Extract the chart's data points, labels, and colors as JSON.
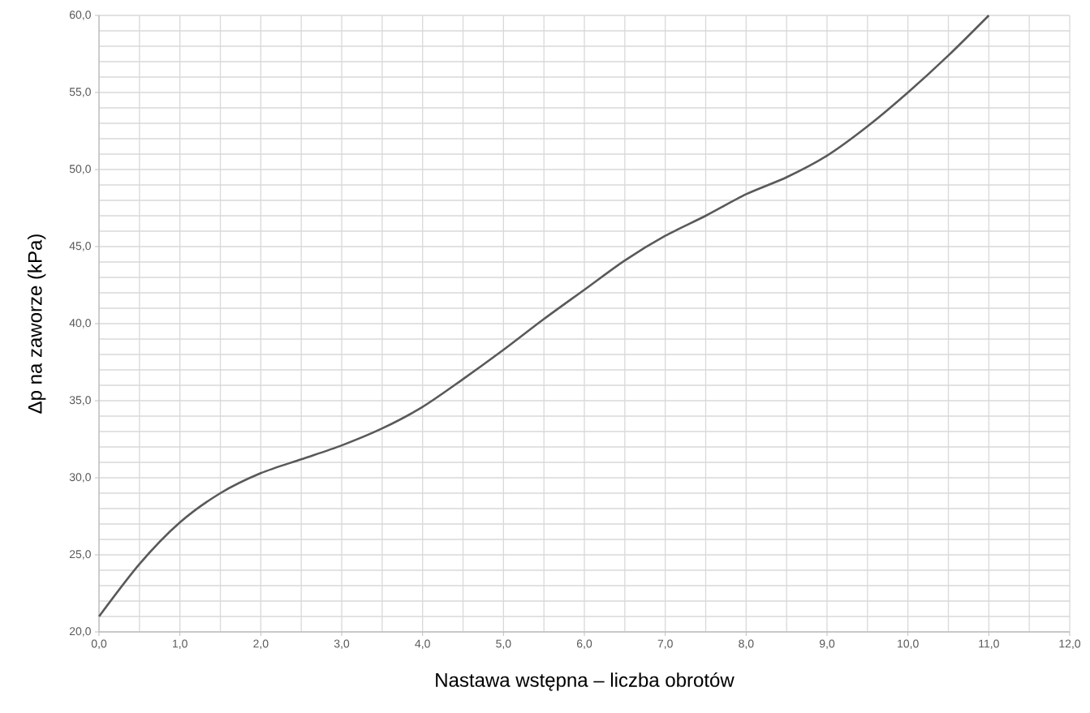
{
  "chart_data": {
    "type": "line",
    "xlabel": "Nastawa wstępna – liczba obrotów",
    "ylabel": "Δp na zaworze (kPa)",
    "x": [
      0,
      0.5,
      1.0,
      1.5,
      2.0,
      2.5,
      3.0,
      3.5,
      4.0,
      4.5,
      5.0,
      5.5,
      6.0,
      6.5,
      7.0,
      7.5,
      8.0,
      8.5,
      9.0,
      9.5,
      10.0,
      10.5,
      11.0
    ],
    "series": [
      {
        "color": "#595959",
        "values": [
          21.0,
          24.4,
          27.1,
          29.0,
          30.3,
          31.2,
          32.1,
          33.2,
          34.6,
          36.4,
          38.3,
          40.3,
          42.2,
          44.1,
          45.7,
          47.0,
          48.4,
          49.5,
          50.9,
          52.8,
          55.0,
          57.4,
          60.0
        ]
      }
    ],
    "xlim": [
      0,
      12
    ],
    "ylim": [
      20,
      60
    ],
    "xticks": [
      {
        "value": 0,
        "label": "0,0"
      },
      {
        "value": 1,
        "label": "1,0"
      },
      {
        "value": 2,
        "label": "2,0"
      },
      {
        "value": 3,
        "label": "3,0"
      },
      {
        "value": 4,
        "label": "4,0"
      },
      {
        "value": 5,
        "label": "5,0"
      },
      {
        "value": 6,
        "label": "6,0"
      },
      {
        "value": 7,
        "label": "7,0"
      },
      {
        "value": 8,
        "label": "8,0"
      },
      {
        "value": 9,
        "label": "9,0"
      },
      {
        "value": 10,
        "label": "10,0"
      },
      {
        "value": 11,
        "label": "11,0"
      },
      {
        "value": 12,
        "label": "12,0"
      }
    ],
    "yticks": [
      {
        "value": 20,
        "label": "20,0"
      },
      {
        "value": 25,
        "label": "25,0"
      },
      {
        "value": 30,
        "label": "30,0"
      },
      {
        "value": 35,
        "label": "35,0"
      },
      {
        "value": 40,
        "label": "40,0"
      },
      {
        "value": 45,
        "label": "45,0"
      },
      {
        "value": 50,
        "label": "50,0"
      },
      {
        "value": 55,
        "label": "55,0"
      },
      {
        "value": 60,
        "label": "60,0"
      }
    ],
    "grid": true
  }
}
